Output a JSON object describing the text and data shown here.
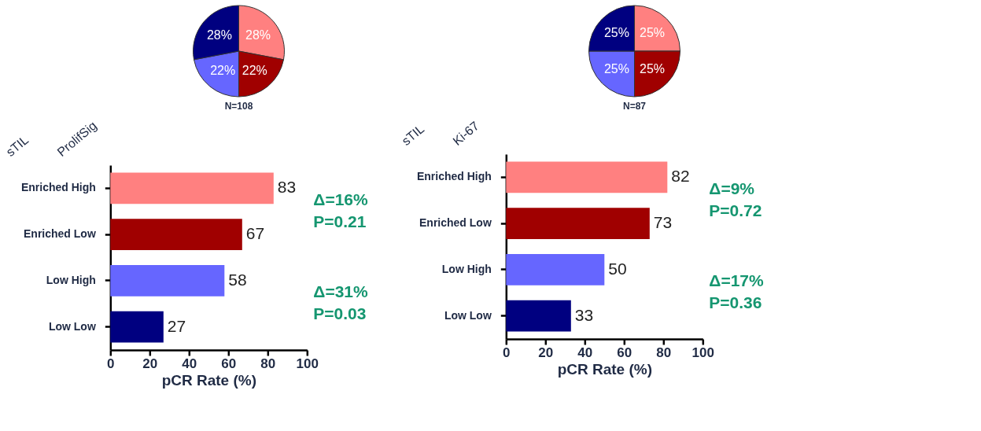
{
  "chart_data": [
    {
      "type": "pie",
      "categories": [
        null,
        null,
        null,
        null
      ],
      "values": [
        28,
        22,
        22,
        28
      ],
      "colors": [
        "#ff8080",
        "#a00000",
        "#6666ff",
        "#000080"
      ],
      "value_labels": [
        "28%",
        "22%",
        "22%",
        "28%"
      ],
      "annotations": [
        "N=108"
      ]
    },
    {
      "type": "bar",
      "orientation": "horizontal",
      "categories": [
        "Enriched   High",
        "Enriched   Low",
        "Low      High",
        "Low      Low"
      ],
      "values": [
        83,
        67,
        58,
        27
      ],
      "colors": [
        "#ff8080",
        "#a00000",
        "#6666ff",
        "#000080"
      ],
      "data_labels": true,
      "xlim": [
        0,
        100
      ],
      "xticks": [
        0,
        20,
        40,
        60,
        80,
        100
      ],
      "xlabel": "pCR Rate (%)",
      "annotations": [
        "sTIL",
        "ProlifSig",
        "Δ=16%",
        "P=0.21",
        "Δ=31%",
        "P=0.03"
      ]
    },
    {
      "type": "pie",
      "categories": [
        null,
        null,
        null,
        null
      ],
      "values": [
        25,
        25,
        25,
        25
      ],
      "colors": [
        "#ff8080",
        "#a00000",
        "#6666ff",
        "#000080"
      ],
      "value_labels": [
        "25%",
        "25%",
        "25%",
        "25%"
      ],
      "annotations": [
        "N=87"
      ]
    },
    {
      "type": "bar",
      "orientation": "horizontal",
      "categories": [
        "Enriched   High",
        "Enriched   Low",
        "Low      High",
        "Low      Low"
      ],
      "values": [
        82,
        73,
        50,
        33
      ],
      "colors": [
        "#ff8080",
        "#a00000",
        "#6666ff",
        "#000080"
      ],
      "data_labels": true,
      "xlim": [
        0,
        100
      ],
      "xticks": [
        0,
        20,
        40,
        60,
        80,
        100
      ],
      "xlabel": "pCR Rate (%)",
      "annotations": [
        "sTIL",
        "Ki-67",
        "Δ=9%",
        "P=0.72",
        "Δ=17%",
        "P=0.36"
      ]
    }
  ]
}
